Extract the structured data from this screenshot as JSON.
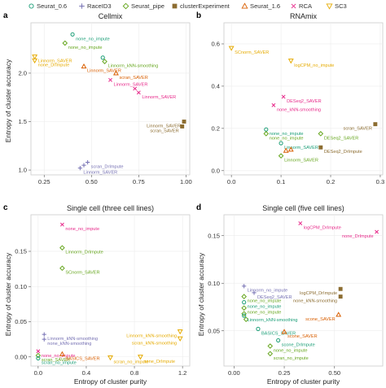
{
  "legend": [
    {
      "label": "Seurat_0.6",
      "color": "#1b9e77",
      "marker": "circle"
    },
    {
      "label": "RaceID3",
      "color": "#7570b3",
      "marker": "plus"
    },
    {
      "label": "Seurat_pipe",
      "color": "#66a61e",
      "marker": "diamond"
    },
    {
      "label": "clusterExperiment",
      "color": "#8c6d31",
      "marker": "square"
    },
    {
      "label": "Seurat_1.6",
      "color": "#d95f02",
      "marker": "triangle"
    },
    {
      "label": "RCA",
      "color": "#e7298a",
      "marker": "x"
    },
    {
      "label": "SC3",
      "color": "#e6ab02",
      "marker": "triangle-down"
    }
  ],
  "x_axis_label": "Entropy of cluster purity",
  "y_axis_label": "Entropy of cluster accuracy",
  "chart_data": [
    {
      "panel_letter": "a",
      "type": "scatter",
      "title": "Cellmix",
      "xlabel": "",
      "ylabel": "Entropy of cluster accuracy",
      "xlim": [
        0.18,
        1.02
      ],
      "ylim": [
        0.95,
        2.52
      ],
      "xticks": [
        "0.25",
        "0.50",
        "0.75",
        "1.00"
      ],
      "xtick_values": [
        0.25,
        0.5,
        0.75,
        1.0
      ],
      "yticks": [
        "1.0",
        "1.5",
        "2.0"
      ],
      "ytick_values": [
        1.0,
        1.5,
        2.0
      ],
      "points": [
        {
          "x": 0.4,
          "y": 2.4,
          "method": "Seurat_0.6",
          "label": "none_no_impute"
        },
        {
          "x": 0.36,
          "y": 2.31,
          "method": "Seurat_pipe",
          "label": "none_no_impute"
        },
        {
          "x": 0.2,
          "y": 2.17,
          "method": "SC3",
          "label": "Linnorm_SAVER"
        },
        {
          "x": 0.2,
          "y": 2.13,
          "method": "SC3",
          "label": "none_DrImpute"
        },
        {
          "x": 0.46,
          "y": 2.07,
          "method": "Seurat_1.6",
          "label": "Linnorm_SAVER"
        },
        {
          "x": 0.56,
          "y": 2.16,
          "method": "Seurat_0.6",
          "label": ""
        },
        {
          "x": 0.57,
          "y": 2.12,
          "method": "Seurat_pipe",
          "label": "Linnorm_kNN-smoothing"
        },
        {
          "x": 0.63,
          "y": 2.0,
          "method": "Seurat_1.6",
          "label": "scran_SAVER"
        },
        {
          "x": 0.6,
          "y": 1.93,
          "method": "RCA",
          "label": "Linnorm_SAVER"
        },
        {
          "x": 0.73,
          "y": 1.84,
          "method": "RCA",
          "label": ""
        },
        {
          "x": 0.75,
          "y": 1.8,
          "method": "RCA",
          "label": "Linnorm_SAVER"
        },
        {
          "x": 0.99,
          "y": 1.5,
          "method": "clusterExperiment",
          "label": "Linnorm_SAVER"
        },
        {
          "x": 0.98,
          "y": 1.45,
          "method": "clusterExperiment",
          "label": "scran_SAVER"
        },
        {
          "x": 0.48,
          "y": 1.08,
          "method": "RaceID3",
          "label": "scran_DrImpute"
        },
        {
          "x": 0.46,
          "y": 1.05,
          "method": "RaceID3",
          "label": ""
        },
        {
          "x": 0.44,
          "y": 1.02,
          "method": "RaceID3",
          "label": "Linnorm_SAVER"
        }
      ]
    },
    {
      "panel_letter": "b",
      "type": "scatter",
      "title": "RNAmix",
      "xlabel": "",
      "ylabel": "",
      "xlim": [
        -0.015,
        0.305
      ],
      "ylim": [
        -0.02,
        0.7
      ],
      "xticks": [
        "0.0",
        "0.1",
        "0.2",
        "0.3"
      ],
      "xtick_values": [
        0.0,
        0.1,
        0.2,
        0.3
      ],
      "yticks": [
        "0.0",
        "0.2",
        "0.4",
        "0.6"
      ],
      "ytick_values": [
        0.0,
        0.2,
        0.4,
        0.6
      ],
      "points": [
        {
          "x": 0.0,
          "y": 0.58,
          "method": "SC3",
          "label": "SCnorm_SAVER"
        },
        {
          "x": 0.12,
          "y": 0.52,
          "method": "SC3",
          "label": "logCPM_no_impute"
        },
        {
          "x": 0.105,
          "y": 0.35,
          "method": "RCA",
          "label": "DESeq2_SAVER"
        },
        {
          "x": 0.085,
          "y": 0.31,
          "method": "RCA",
          "label": "none_kNN-smoothing"
        },
        {
          "x": 0.07,
          "y": 0.195,
          "method": "Seurat_0.6",
          "label": "none_no_impute"
        },
        {
          "x": 0.07,
          "y": 0.175,
          "method": "Seurat_pipe",
          "label": "none_no_impute"
        },
        {
          "x": 0.1,
          "y": 0.13,
          "method": "Seurat_0.6",
          "label": "Linnorm_SAVER"
        },
        {
          "x": 0.18,
          "y": 0.175,
          "method": "Seurat_pipe",
          "label": "DESeq2_SAVER"
        },
        {
          "x": 0.12,
          "y": 0.1,
          "method": "Seurat_1.6",
          "label": ""
        },
        {
          "x": 0.11,
          "y": 0.095,
          "method": "Seurat_1.6",
          "label": ""
        },
        {
          "x": 0.18,
          "y": 0.11,
          "method": "clusterExperiment",
          "label": "DESeq2_DrImpute"
        },
        {
          "x": 0.29,
          "y": 0.22,
          "method": "clusterExperiment",
          "label": "scran_SAVER"
        },
        {
          "x": 0.1,
          "y": 0.07,
          "method": "Seurat_pipe",
          "label": "Linnorm_SAVER"
        }
      ]
    },
    {
      "panel_letter": "c",
      "type": "scatter",
      "title": "Single cell (three cell lines)",
      "xlabel": "Entropy of cluster purity",
      "ylabel": "Entropy of cluster accuracy",
      "xlim": [
        -0.06,
        1.26
      ],
      "ylim": [
        -0.013,
        0.202
      ],
      "xticks": [
        "0.0",
        "0.4",
        "0.8",
        "1.2"
      ],
      "xtick_values": [
        0.0,
        0.4,
        0.8,
        1.2
      ],
      "yticks": [
        "0.00",
        "0.05",
        "0.10",
        "0.15"
      ],
      "ytick_values": [
        0.0,
        0.05,
        0.1,
        0.15
      ],
      "points": [
        {
          "x": 0.2,
          "y": 0.188,
          "method": "RCA",
          "label": "none_no_impute"
        },
        {
          "x": 0.2,
          "y": 0.155,
          "method": "Seurat_pipe",
          "label": "Linnorm_DrImpute"
        },
        {
          "x": 0.2,
          "y": 0.126,
          "method": "Seurat_pipe",
          "label": "SCnorm_SAVER"
        },
        {
          "x": 1.18,
          "y": 0.036,
          "method": "SC3",
          "label": "Linnorm_kNN-smoothing"
        },
        {
          "x": 1.18,
          "y": 0.026,
          "method": "SC3",
          "label": "scran_kNN-smoothing"
        },
        {
          "x": 0.05,
          "y": 0.032,
          "method": "RaceID3",
          "label": "Linnorm_kNN-smoothing"
        },
        {
          "x": 0.05,
          "y": 0.025,
          "method": "RaceID3",
          "label": "none_kNN-smoothing"
        },
        {
          "x": 0.0,
          "y": 0.008,
          "method": "RCA",
          "label": "none_no_impute"
        },
        {
          "x": 0.0,
          "y": 0.002,
          "method": "Seurat_pipe",
          "label": "scran_SAVER"
        },
        {
          "x": 0.0,
          "y": -0.002,
          "method": "Seurat_0.6",
          "label": "scran_no_impute"
        },
        {
          "x": 0.2,
          "y": 0.004,
          "method": "Seurat_1.6",
          "label": "BASICS_SAVER"
        },
        {
          "x": 0.6,
          "y": -0.001,
          "method": "SC3",
          "label": "scran_no_impute"
        },
        {
          "x": 0.85,
          "y": 0.0,
          "method": "SC3",
          "label": "none_DrImpute"
        }
      ]
    },
    {
      "panel_letter": "d",
      "type": "scatter",
      "title": "Single cell (five cell lines)",
      "xlabel": "Entropy of cluster purity",
      "ylabel": "Entropy of cluster accuracy",
      "xlim": [
        -0.05,
        0.74
      ],
      "ylim": [
        0.013,
        0.172
      ],
      "xticks": [
        "0.00",
        "0.25",
        "0.50"
      ],
      "xtick_values": [
        0.0,
        0.25,
        0.5
      ],
      "yticks": [
        "0.05",
        "0.10",
        "0.15"
      ],
      "ytick_values": [
        0.05,
        0.1,
        0.15
      ],
      "points": [
        {
          "x": 0.33,
          "y": 0.163,
          "method": "RCA",
          "label": "logCPM_DrImpute"
        },
        {
          "x": 0.71,
          "y": 0.154,
          "method": "RCA",
          "label": "none_DrImpute"
        },
        {
          "x": 0.05,
          "y": 0.097,
          "method": "RaceID3",
          "label": "Linnorm_no_impute"
        },
        {
          "x": 0.1,
          "y": 0.09,
          "method": "RaceID3",
          "label": "DESeq2_SAVER"
        },
        {
          "x": 0.05,
          "y": 0.086,
          "method": "Seurat_pipe",
          "label": "none_no_impute"
        },
        {
          "x": 0.05,
          "y": 0.08,
          "method": "Seurat_0.6",
          "label": "none_no_impute"
        },
        {
          "x": 0.05,
          "y": 0.074,
          "method": "Seurat_pipe",
          "label": "none_no_impute"
        },
        {
          "x": 0.05,
          "y": 0.068,
          "method": "Seurat_pipe",
          "label": ""
        },
        {
          "x": 0.06,
          "y": 0.062,
          "method": "Seurat_pipe",
          "label": ""
        },
        {
          "x": 0.05,
          "y": 0.066,
          "method": "Seurat_0.6",
          "label": "Linnorm_kNN-smoothing"
        },
        {
          "x": 0.53,
          "y": 0.094,
          "method": "clusterExperiment",
          "label": "logCPM_DrImpute"
        },
        {
          "x": 0.53,
          "y": 0.086,
          "method": "clusterExperiment",
          "label": "none_kNN-smoothing"
        },
        {
          "x": 0.52,
          "y": 0.067,
          "method": "Seurat_1.6",
          "label": "scone_SAVER"
        },
        {
          "x": 0.12,
          "y": 0.052,
          "method": "Seurat_0.6",
          "label": "BASICS_SAVER"
        },
        {
          "x": 0.25,
          "y": 0.049,
          "method": "Seurat_1.6",
          "label": "scone_SAVER"
        },
        {
          "x": 0.22,
          "y": 0.04,
          "method": "Seurat_0.6",
          "label": "scone_DrImpute"
        },
        {
          "x": 0.18,
          "y": 0.034,
          "method": "Seurat_pipe",
          "label": "none_no_impute"
        },
        {
          "x": 0.18,
          "y": 0.026,
          "method": "Seurat_pipe",
          "label": "scran_no_impute"
        }
      ]
    }
  ]
}
